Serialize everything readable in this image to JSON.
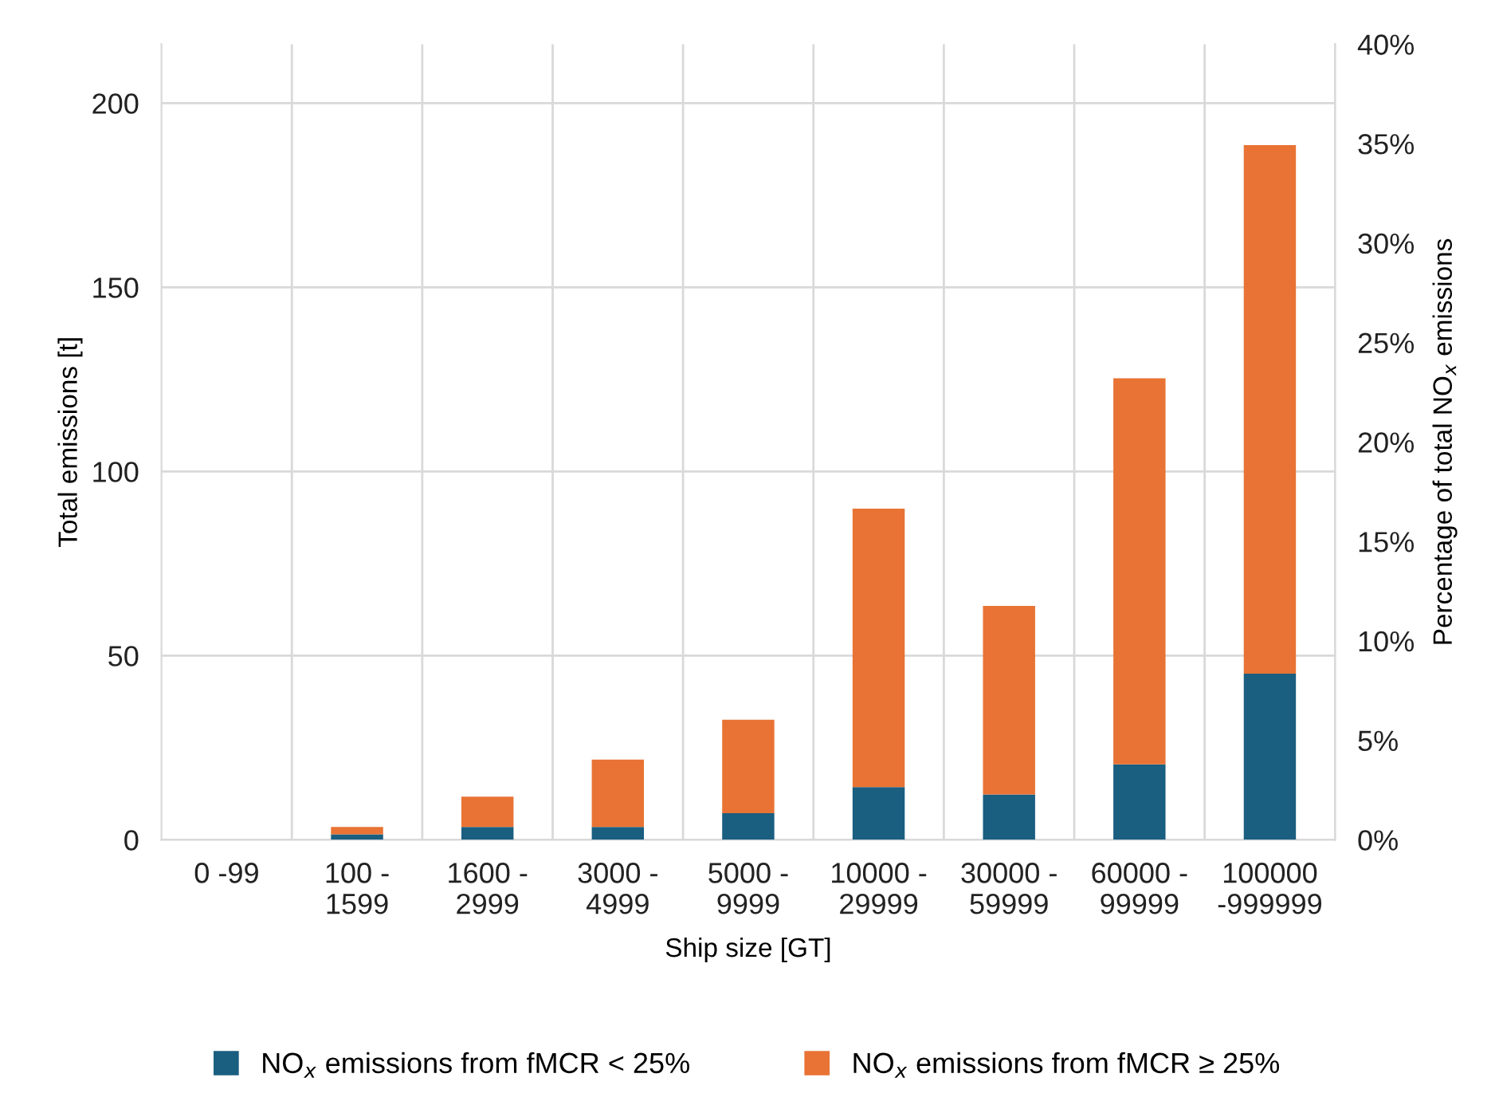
{
  "chart_data": {
    "type": "bar",
    "stacked": true,
    "xlabel": "Ship size [GT]",
    "ylabel": "Total emissions [t]",
    "y2label": "Percentage of total NO$_{x}$ emissions",
    "categories": [
      "0 -99",
      "100 -\n1599",
      "1600 -\n2999",
      "3000 -\n4999",
      "5000 -\n9999",
      "10000 -\n29999",
      "30000 -\n59999",
      "60000 -\n99999",
      "100000\n-999999"
    ],
    "series": [
      {
        "name": "NO$_{x}$ emissions from fMCR < 25%",
        "color": "#1a5e80",
        "values": [
          0,
          1.5,
          3.5,
          3.5,
          7.2,
          14.3,
          12.3,
          20.5,
          45.1
        ]
      },
      {
        "name": "NO$_{x}$ emissions from fMCR ≥ 25%",
        "color": "#e87334",
        "values": [
          0,
          2.0,
          8.2,
          18.3,
          25.4,
          75.6,
          51.2,
          104.8,
          143.5
        ]
      }
    ],
    "ylim": [
      0,
      216
    ],
    "yticks": [
      0,
      50,
      100,
      150,
      200
    ],
    "y2lim": [
      0,
      40
    ],
    "y2ticks": [
      {
        "value": 0,
        "label": "0%"
      },
      {
        "value": 5,
        "label": "5%"
      },
      {
        "value": 10,
        "label": "10%"
      },
      {
        "value": 15,
        "label": "15%"
      },
      {
        "value": 20,
        "label": "20%"
      },
      {
        "value": 25,
        "label": "25%"
      },
      {
        "value": 30,
        "label": "30%"
      },
      {
        "value": 35,
        "label": "35%"
      },
      {
        "value": 40,
        "label": "40%"
      }
    ],
    "grid": true,
    "legend": "bottom"
  }
}
